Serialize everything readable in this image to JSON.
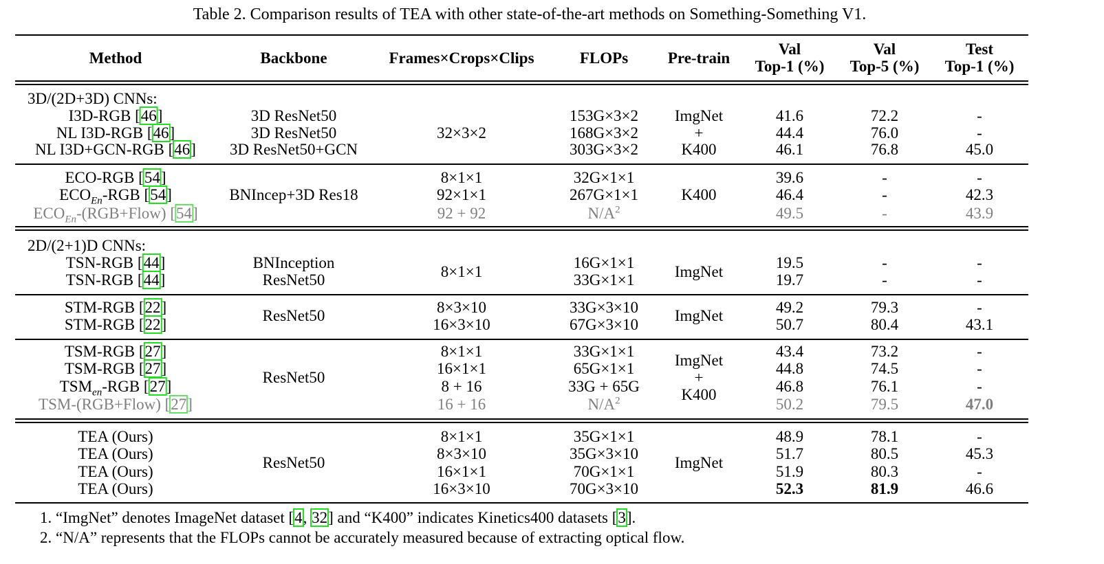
{
  "caption": "Table 2.  Comparison results of TEA with other state-of-the-art methods on Something-Something V1.",
  "headers": {
    "method": "Method",
    "backbone": "Backbone",
    "frames": "Frames×Crops×Clips",
    "flops": "FLOPs",
    "pretrain": "Pre-train",
    "val1_a": "Val",
    "val1_b": "Top-1 (%)",
    "val5_a": "Val",
    "val5_b": "Top-5 (%)",
    "test1_a": "Test",
    "test1_b": "Top-1 (%)"
  },
  "groups": {
    "g3d": "3D/(2D+3D) CNNs:",
    "g2d": "2D/(2+1)D CNNs:"
  },
  "rows": [
    {
      "method": "I3D-RGB",
      "ref": "46",
      "flops": "153G×3×2",
      "v1": "41.6",
      "v5": "72.2",
      "t1": "-"
    },
    {
      "method": "NL I3D-RGB",
      "ref": "46",
      "flops": "168G×3×2",
      "v1": "44.4",
      "v5": "76.0",
      "t1": "-"
    },
    {
      "method": "NL I3D+GCN-RGB",
      "ref": "46",
      "flops": "303G×3×2",
      "v1": "46.1",
      "v5": "76.8",
      "t1": "45.0"
    },
    {
      "method": "ECO-RGB",
      "ref": "54",
      "frames": "8×1×1",
      "flops": "32G×1×1",
      "v1": "39.6",
      "v5": "-",
      "t1": "-"
    },
    {
      "method_a": "ECO",
      "method_sub": "En",
      "method_b": "-RGB",
      "ref": "54",
      "frames": "92×1×1",
      "flops": "267G×1×1",
      "v1": "46.4",
      "v5": "-",
      "t1": "42.3"
    },
    {
      "method_a": "ECO",
      "method_sub": "En",
      "method_b": "-(RGB+Flow)",
      "ref": "54",
      "frames": "92 + 92",
      "flops": "N/A",
      "flops_sup": "2",
      "v1": "49.5",
      "v5": "-",
      "t1": "43.9"
    },
    {
      "method": "TSN-RGB",
      "ref": "44",
      "backbone": "BNInception",
      "flops": "16G×1×1",
      "v1": "19.5",
      "v5": "-",
      "t1": "-"
    },
    {
      "method": "TSN-RGB",
      "ref": "44",
      "backbone": "ResNet50",
      "flops": "33G×1×1",
      "v1": "19.7",
      "v5": "-",
      "t1": "-"
    },
    {
      "method": "STM-RGB",
      "ref": "22",
      "frames": "8×3×10",
      "flops": "33G×3×10",
      "v1": "49.2",
      "v5": "79.3",
      "t1": "-"
    },
    {
      "method": "STM-RGB",
      "ref": "22",
      "frames": "16×3×10",
      "flops": "67G×3×10",
      "v1": "50.7",
      "v5": "80.4",
      "t1": "43.1"
    },
    {
      "method": "TSM-RGB",
      "ref": "27",
      "frames": "8×1×1",
      "flops": "33G×1×1",
      "v1": "43.4",
      "v5": "73.2",
      "t1": "-"
    },
    {
      "method": "TSM-RGB",
      "ref": "27",
      "frames": "16×1×1",
      "flops": "65G×1×1",
      "v1": "44.8",
      "v5": "74.5",
      "t1": "-"
    },
    {
      "method_a": "TSM",
      "method_sub": "en",
      "method_b": "-RGB",
      "ref": "27",
      "frames": "8 + 16",
      "flops": "33G + 65G",
      "v1": "46.8",
      "v5": "76.1",
      "t1": "-"
    },
    {
      "method": "TSM-(RGB+Flow)",
      "ref": "27",
      "frames": "16 + 16",
      "flops": "N/A",
      "flops_sup": "2",
      "v1": "50.2",
      "v5": "79.5",
      "t1": "47.0"
    },
    {
      "method": "TEA (Ours)",
      "frames": "8×1×1",
      "flops": "35G×1×1",
      "v1": "48.9",
      "v5": "78.1",
      "t1": "-"
    },
    {
      "method": "TEA (Ours)",
      "frames": "8×3×10",
      "flops": "35G×3×10",
      "v1": "51.7",
      "v5": "80.5",
      "t1": "45.3"
    },
    {
      "method": "TEA (Ours)",
      "frames": "16×1×1",
      "flops": "70G×1×1",
      "v1": "51.9",
      "v5": "80.3",
      "t1": "-"
    },
    {
      "method": "TEA (Ours)",
      "frames": "16×3×10",
      "flops": "70G×3×10",
      "v1": "52.3",
      "v5": "81.9",
      "t1": "46.6"
    }
  ],
  "shared": {
    "i3d_backbones": [
      "3D ResNet50",
      "3D ResNet50",
      "3D ResNet50+GCN"
    ],
    "i3d_frames": "32×3×2",
    "imgnet": "ImgNet",
    "plus": "+",
    "k400": "K400",
    "eco_backbone": "BNIncep+3D Res18",
    "tsn_frames": "8×1×1",
    "resnet50": "ResNet50"
  },
  "notes": {
    "n1_a": "1. “ImgNet” denotes ImageNet dataset [",
    "n1_r1": "4",
    "n1_sep": ", ",
    "n1_r2": "32",
    "n1_b": "] and “K400” indicates Kinetics400 datasets [",
    "n1_r3": "3",
    "n1_c": "].",
    "n2": "2. “N/A” represents that the FLOPs cannot be accurately measured because of extracting optical flow."
  }
}
